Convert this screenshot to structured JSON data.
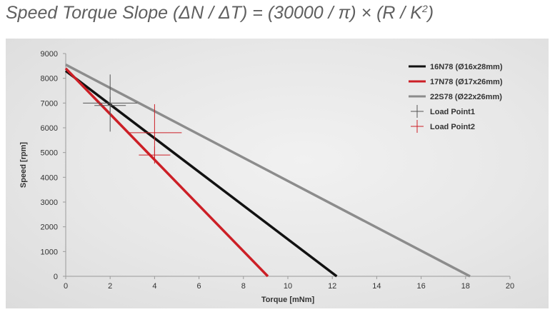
{
  "title": {
    "main": "Speed Torque Slope (ΔN / ΔT) = (30000 / π) × (R / K",
    "sup": "2",
    "close": ")"
  },
  "chart_data": {
    "type": "line",
    "xlabel": "Torque [mNm]",
    "ylabel": "Speed [rpm]",
    "xlim": [
      0,
      20
    ],
    "ylim": [
      0,
      9000
    ],
    "xticks": [
      0,
      2,
      4,
      6,
      8,
      10,
      12,
      14,
      16,
      18,
      20
    ],
    "yticks": [
      0,
      1000,
      2000,
      3000,
      4000,
      5000,
      6000,
      7000,
      8000,
      9000
    ],
    "grid": false,
    "legend_position": "top-right",
    "series": [
      {
        "name": "16N78 (Ø16x28mm)",
        "color": "#111111",
        "x": [
          0,
          12.2
        ],
        "y": [
          8300,
          0
        ]
      },
      {
        "name": "17N78 (Ø17x26mm)",
        "color": "#cc1f26",
        "x": [
          0,
          9.1
        ],
        "y": [
          8400,
          0
        ]
      },
      {
        "name": "22S78 (Ø22x26mm)",
        "color": "#8c8c8c",
        "x": [
          0,
          18.2
        ],
        "y": [
          8550,
          0
        ]
      }
    ],
    "markers": [
      {
        "name": "Load Point1",
        "color": "#555555",
        "points": [
          {
            "x": 2,
            "y": 7000,
            "size": "large"
          },
          {
            "x": 2,
            "y": 6900,
            "size": "small"
          }
        ]
      },
      {
        "name": "Load Point2",
        "color": "#cc1f26",
        "points": [
          {
            "x": 4,
            "y": 5800,
            "size": "large"
          },
          {
            "x": 4,
            "y": 4900,
            "size": "small"
          }
        ]
      }
    ]
  }
}
